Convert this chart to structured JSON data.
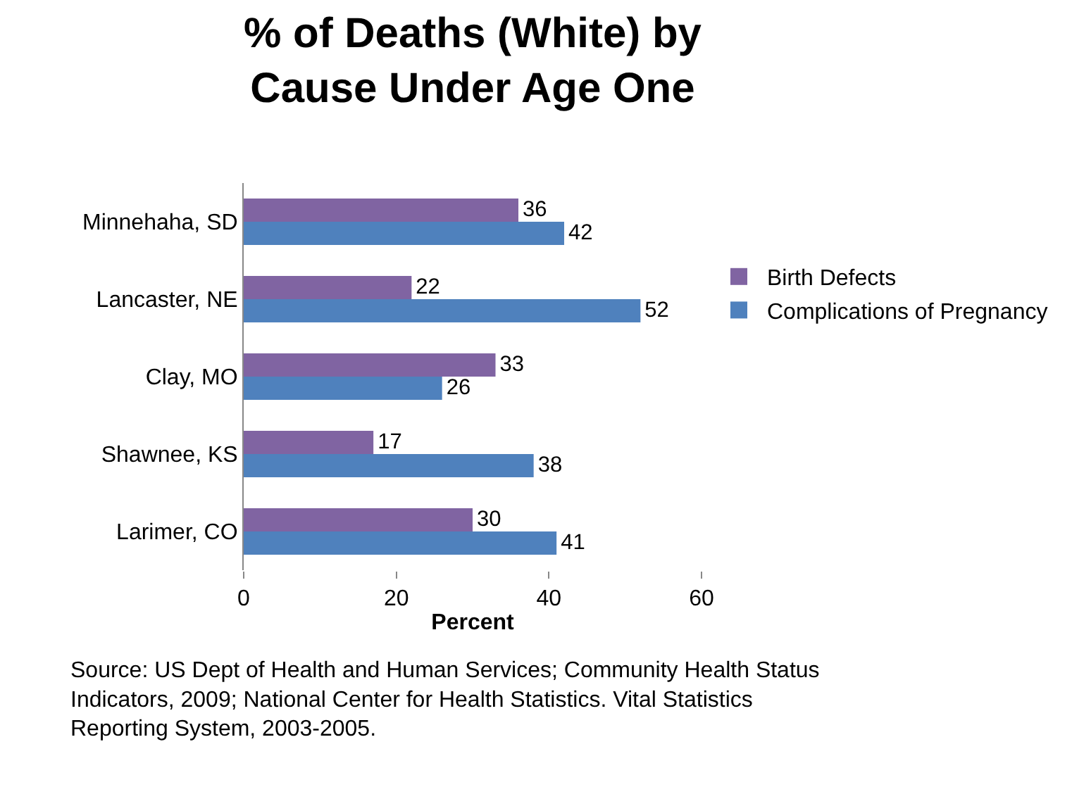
{
  "chart_data": {
    "type": "bar",
    "orientation": "horizontal",
    "title": "% of Deaths (White) by Cause Under Age One",
    "xlabel": "Percent",
    "categories": [
      "Minnehaha, SD",
      "Lancaster, NE",
      "Clay, MO",
      "Shawnee, KS",
      "Larimer, CO"
    ],
    "series": [
      {
        "name": "Birth Defects",
        "color": "#8064a2",
        "values": [
          36,
          22,
          33,
          17,
          30
        ]
      },
      {
        "name": "Complications of Pregnancy",
        "color": "#4f81bd",
        "values": [
          42,
          52,
          26,
          38,
          41
        ]
      }
    ],
    "xlim": [
      0,
      60
    ],
    "xticks": [
      0,
      20,
      40,
      60
    ],
    "grid": false,
    "legend": "right",
    "data_labels": true,
    "annotations": [
      "Source: US Dept of Health and Human Services; Community Health Status Indicators, 2009; National Center for Health Statistics. Vital Statistics Reporting System, 2003-2005."
    ]
  }
}
